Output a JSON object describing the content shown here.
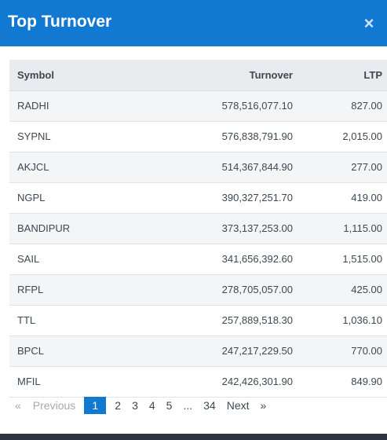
{
  "modal": {
    "title": "Top Turnover",
    "close_label": "×"
  },
  "table": {
    "headers": {
      "symbol": "Symbol",
      "turnover": "Turnover",
      "ltp": "LTP"
    },
    "rows": [
      {
        "symbol": "RADHI",
        "turnover": "578,516,077.10",
        "ltp": "827.00"
      },
      {
        "symbol": "SYPNL",
        "turnover": "576,838,791.90",
        "ltp": "2,015.00"
      },
      {
        "symbol": "AKJCL",
        "turnover": "514,367,844.90",
        "ltp": "277.00"
      },
      {
        "symbol": "NGPL",
        "turnover": "390,327,251.70",
        "ltp": "419.00"
      },
      {
        "symbol": "BANDIPUR",
        "turnover": "373,137,253.00",
        "ltp": "1,115.00"
      },
      {
        "symbol": "SAIL",
        "turnover": "341,656,392.60",
        "ltp": "1,515.00"
      },
      {
        "symbol": "RFPL",
        "turnover": "278,705,057.00",
        "ltp": "425.00"
      },
      {
        "symbol": "TTL",
        "turnover": "257,889,518.30",
        "ltp": "1,036.10"
      },
      {
        "symbol": "BPCL",
        "turnover": "247,217,229.50",
        "ltp": "770.00"
      },
      {
        "symbol": "MFIL",
        "turnover": "242,426,301.90",
        "ltp": "849.90"
      }
    ]
  },
  "pagination": {
    "first_arrow": "«",
    "previous_label": "Previous",
    "pages": [
      "1",
      "2",
      "3",
      "4",
      "5"
    ],
    "ellipsis": "...",
    "last_page": "34",
    "next_label": "Next",
    "last_arrow": "»",
    "current_page": "1"
  },
  "colors": {
    "header_bg": "#1279d2",
    "active_page_bg": "#1279d2"
  }
}
